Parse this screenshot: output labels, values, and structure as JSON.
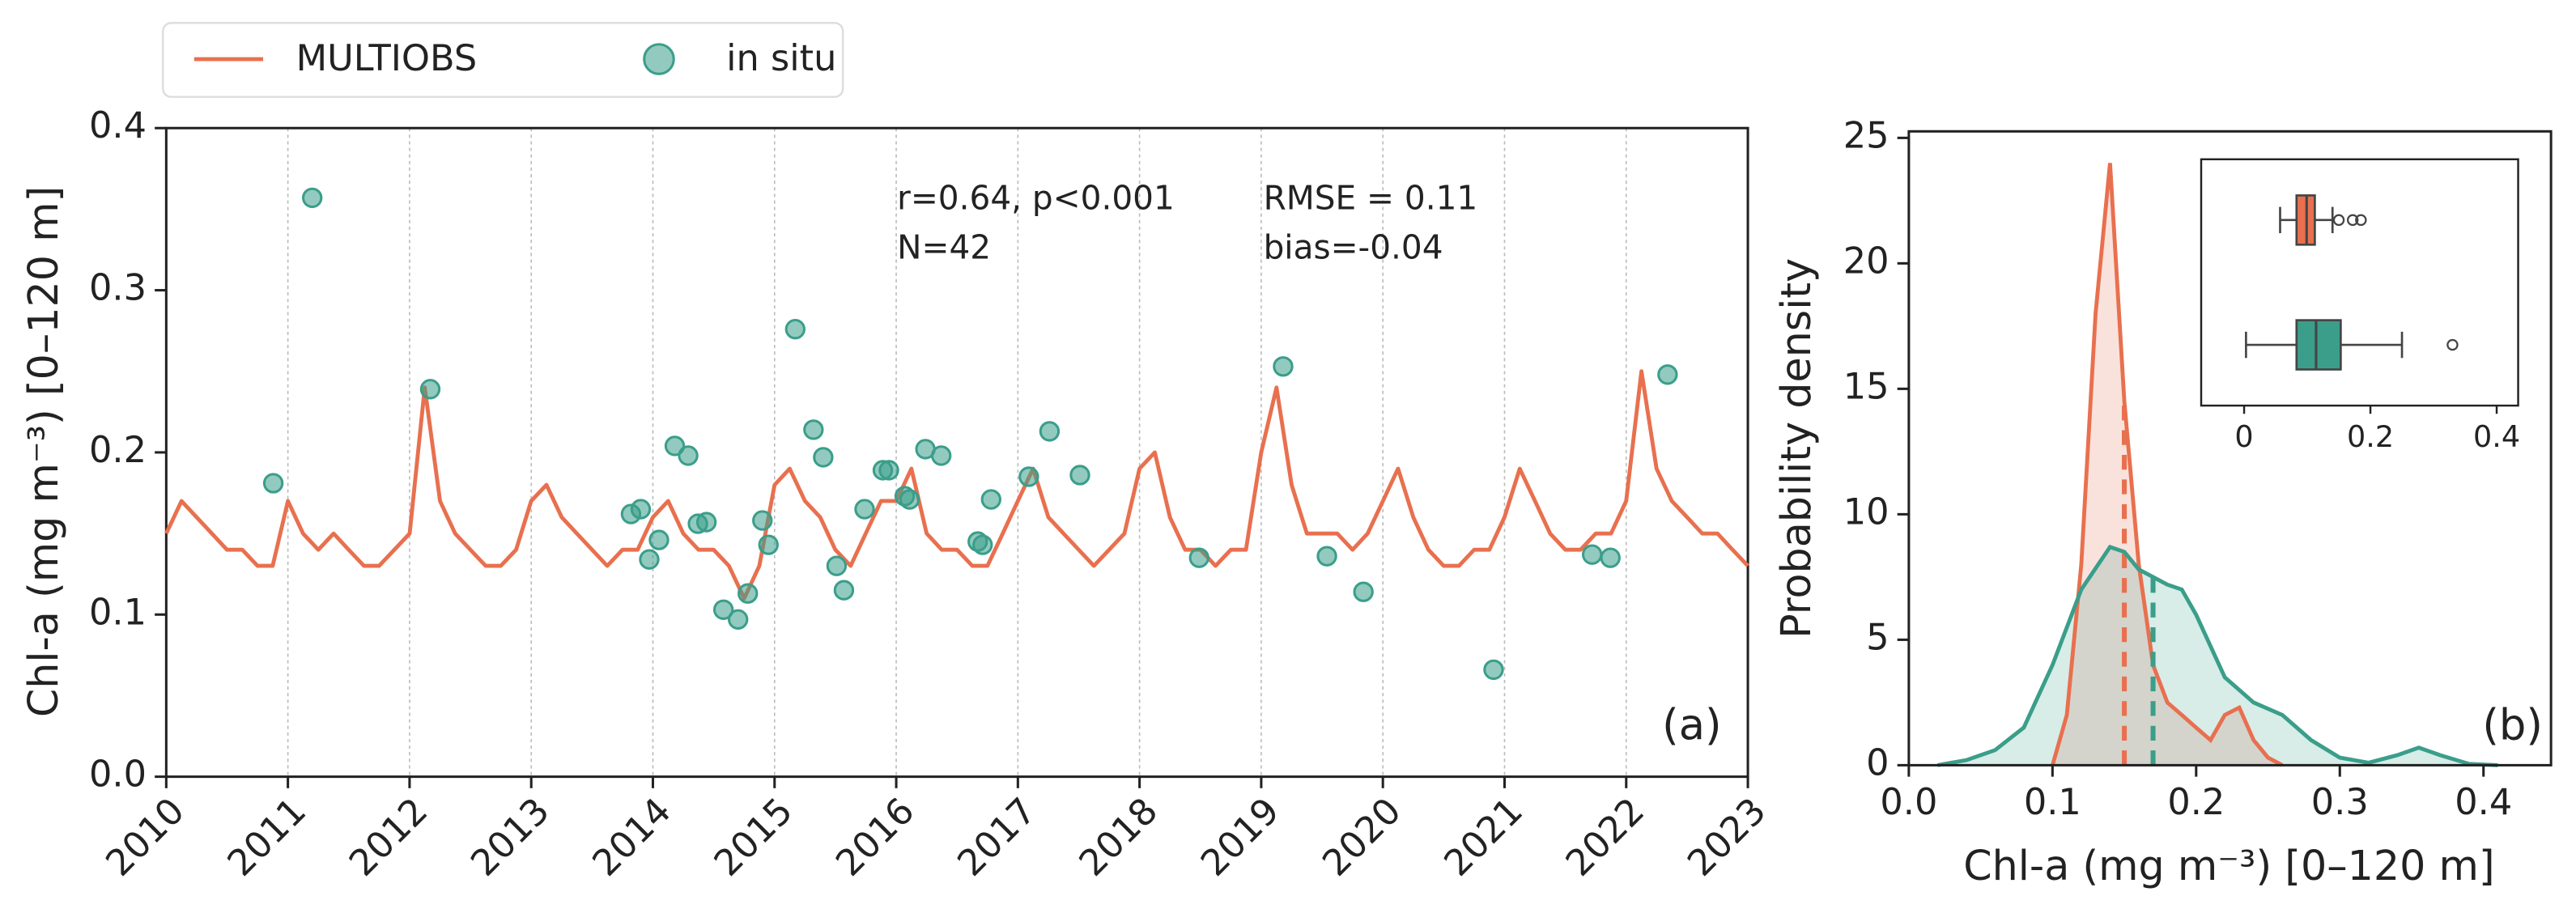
{
  "chart_data": [
    {
      "type": "timeseries",
      "ylabel": "Chl-a (mg m⁻³) [0–120 m]",
      "xlim": [
        2010,
        2023
      ],
      "ylim": [
        0,
        0.4
      ],
      "xticks": [
        2010,
        2011,
        2012,
        2013,
        2014,
        2015,
        2016,
        2017,
        2018,
        2019,
        2020,
        2021,
        2022,
        2023
      ],
      "yticks": [
        {
          "value": 0,
          "label": "0.0"
        },
        0.1,
        0.2,
        0.3,
        0.4
      ],
      "xgrid": true,
      "legend": "above",
      "annotations": [
        "r=0.64, p<0.001",
        "N=42",
        "RMSE = 0.11",
        "bias=-0.04"
      ],
      "panel_label": "(a)",
      "series": [
        {
          "name": "MULTIOBS",
          "type": "line",
          "color": "#e8704f",
          "x": [
            2010,
            2010.125,
            2010.25,
            2010.375,
            2010.5,
            2010.625,
            2010.75,
            2010.875,
            2011,
            2011.125,
            2011.25,
            2011.375,
            2011.5,
            2011.625,
            2011.75,
            2011.875,
            2012,
            2012.125,
            2012.25,
            2012.375,
            2012.5,
            2012.625,
            2012.75,
            2012.875,
            2013,
            2013.125,
            2013.25,
            2013.375,
            2013.5,
            2013.625,
            2013.75,
            2013.875,
            2014,
            2014.125,
            2014.25,
            2014.375,
            2014.5,
            2014.625,
            2014.75,
            2014.875,
            2015,
            2015.125,
            2015.25,
            2015.375,
            2015.5,
            2015.625,
            2015.75,
            2015.875,
            2016,
            2016.125,
            2016.25,
            2016.375,
            2016.5,
            2016.625,
            2016.75,
            2016.875,
            2017,
            2017.125,
            2017.25,
            2017.375,
            2017.5,
            2017.625,
            2017.75,
            2017.875,
            2018,
            2018.125,
            2018.25,
            2018.375,
            2018.5,
            2018.625,
            2018.75,
            2018.875,
            2019,
            2019.125,
            2019.25,
            2019.375,
            2019.5,
            2019.625,
            2019.75,
            2019.875,
            2020,
            2020.125,
            2020.25,
            2020.375,
            2020.5,
            2020.625,
            2020.75,
            2020.875,
            2021,
            2021.125,
            2021.25,
            2021.375,
            2021.5,
            2021.625,
            2021.75,
            2021.875,
            2022,
            2022.125,
            2022.25,
            2022.375,
            2022.5,
            2022.625,
            2022.75,
            2022.875,
            2023
          ],
          "values": [
            0.15,
            0.17,
            0.16,
            0.15,
            0.14,
            0.14,
            0.13,
            0.13,
            0.17,
            0.15,
            0.14,
            0.15,
            0.14,
            0.13,
            0.13,
            0.14,
            0.15,
            0.24,
            0.17,
            0.15,
            0.14,
            0.13,
            0.13,
            0.14,
            0.17,
            0.18,
            0.16,
            0.15,
            0.14,
            0.13,
            0.14,
            0.14,
            0.16,
            0.17,
            0.15,
            0.14,
            0.14,
            0.13,
            0.11,
            0.13,
            0.18,
            0.19,
            0.17,
            0.16,
            0.14,
            0.13,
            0.15,
            0.17,
            0.17,
            0.19,
            0.15,
            0.14,
            0.14,
            0.13,
            0.13,
            0.15,
            0.17,
            0.19,
            0.16,
            0.15,
            0.14,
            0.13,
            0.14,
            0.15,
            0.19,
            0.2,
            0.16,
            0.14,
            0.14,
            0.13,
            0.14,
            0.14,
            0.2,
            0.24,
            0.18,
            0.15,
            0.15,
            0.15,
            0.14,
            0.15,
            0.17,
            0.19,
            0.16,
            0.14,
            0.13,
            0.13,
            0.14,
            0.14,
            0.16,
            0.19,
            0.17,
            0.15,
            0.14,
            0.14,
            0.15,
            0.15,
            0.17,
            0.25,
            0.19,
            0.17,
            0.16,
            0.15,
            0.15,
            0.14,
            0.13
          ]
        },
        {
          "name": "in situ",
          "type": "scatter",
          "color": "#3a9e8a",
          "x": [
            2010.88,
            2011.2,
            2012.17,
            2013.82,
            2013.9,
            2013.97,
            2014.05,
            2014.18,
            2014.29,
            2014.37,
            2014.44,
            2014.58,
            2014.7,
            2014.78,
            2014.9,
            2014.95,
            2015.17,
            2015.32,
            2015.4,
            2015.51,
            2015.57,
            2015.74,
            2015.89,
            2015.94,
            2016.07,
            2016.11,
            2016.24,
            2016.37,
            2016.67,
            2016.71,
            2016.78,
            2017.09,
            2017.26,
            2017.51,
            2018.49,
            2019.18,
            2019.54,
            2019.84,
            2020.91,
            2021.72,
            2021.87,
            2022.34
          ],
          "values": [
            0.181,
            0.357,
            0.239,
            0.162,
            0.165,
            0.134,
            0.146,
            0.204,
            0.198,
            0.156,
            0.157,
            0.103,
            0.097,
            0.113,
            0.158,
            0.143,
            0.276,
            0.214,
            0.197,
            0.13,
            0.115,
            0.165,
            0.189,
            0.189,
            0.173,
            0.171,
            0.202,
            0.198,
            0.145,
            0.143,
            0.171,
            0.185,
            0.213,
            0.186,
            0.135,
            0.253,
            0.136,
            0.114,
            0.066,
            0.137,
            0.135,
            0.248
          ]
        }
      ]
    },
    {
      "type": "density",
      "ylabel": "Probability density",
      "xlabel": "Chl-a (mg m⁻³) [0–120 m]",
      "xlim": [
        0,
        0.447
      ],
      "ylim": [
        0,
        25.26
      ],
      "xticks": [
        {
          "value": 0,
          "label": "0.0"
        },
        0.1,
        0.2,
        0.3,
        0.4
      ],
      "yticks": [
        0,
        5,
        10,
        15,
        20,
        25
      ],
      "panel_label": "(b)",
      "inset": {
        "xlim": [
          -0.068,
          0.434
        ],
        "xticks": [
          0,
          0.2,
          0.4
        ]
      },
      "series": [
        {
          "color": "#e8704f",
          "x": [
            0.1,
            0.11,
            0.12,
            0.13,
            0.14,
            0.15,
            0.16,
            0.17,
            0.18,
            0.19,
            0.2,
            0.21,
            0.22,
            0.23,
            0.24,
            0.25,
            0.26
          ],
          "values": [
            0,
            2,
            8,
            18,
            24,
            14.5,
            8,
            4,
            2.5,
            2,
            1.5,
            1,
            2,
            2.3,
            1,
            0.3,
            0
          ],
          "mean": 0.15,
          "box": {
            "whislo": 0.057,
            "q1": 0.083,
            "med": 0.099,
            "q3": 0.112,
            "whishi": 0.14,
            "fliers": [
              0.15,
              0.172,
              0.185
            ]
          }
        },
        {
          "color": "#3a9e8a",
          "x": [
            0.02,
            0.04,
            0.06,
            0.08,
            0.1,
            0.12,
            0.14,
            0.15,
            0.16,
            0.18,
            0.19,
            0.2,
            0.22,
            0.24,
            0.26,
            0.28,
            0.3,
            0.32,
            0.34,
            0.355,
            0.37,
            0.39,
            0.41
          ],
          "values": [
            0,
            0.2,
            0.6,
            1.5,
            4,
            7,
            8.7,
            8.5,
            7.8,
            7.2,
            7,
            6,
            3.5,
            2.5,
            2,
            1,
            0.3,
            0.1,
            0.4,
            0.7,
            0.4,
            0.05,
            0
          ],
          "mean": 0.17,
          "box": {
            "whislo": 0.003,
            "q1": 0.083,
            "med": 0.114,
            "q3": 0.153,
            "whishi": 0.25,
            "fliers": [
              0.33
            ]
          }
        }
      ]
    }
  ]
}
